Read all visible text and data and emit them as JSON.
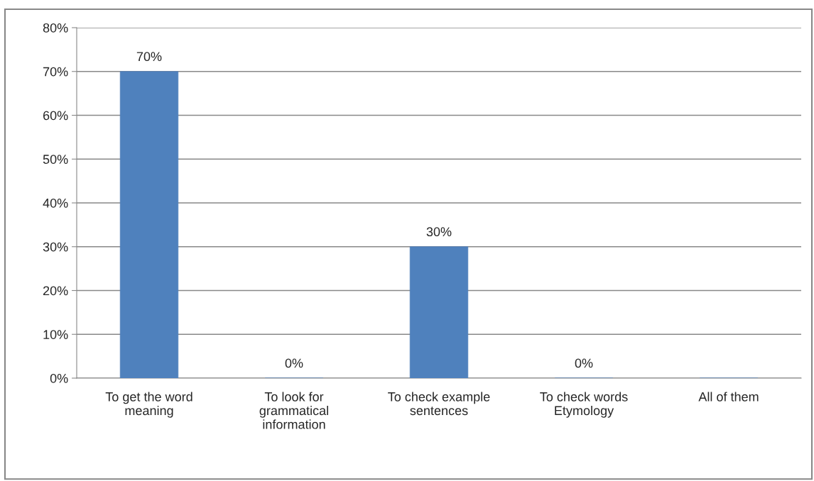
{
  "chart_data": {
    "type": "bar",
    "categories": [
      "To get the word\nmeaning",
      "To look for\ngrammatical\ninformation",
      "To check example\nsentences",
      "To check words\nEtymology",
      "All of them"
    ],
    "values": [
      70,
      0,
      30,
      0,
      0
    ],
    "value_labels": [
      "70%",
      "0%",
      "30%",
      "0%",
      null
    ],
    "color": "#4f81bd",
    "ylim": [
      0,
      80
    ],
    "yticks": [
      {
        "value": 0,
        "label": "0%"
      },
      {
        "value": 10,
        "label": "10%"
      },
      {
        "value": 20,
        "label": "20%"
      },
      {
        "value": 30,
        "label": "30%"
      },
      {
        "value": 40,
        "label": "40%"
      },
      {
        "value": 50,
        "label": "50%"
      },
      {
        "value": 60,
        "label": "60%"
      },
      {
        "value": 70,
        "label": "70%"
      },
      {
        "value": 80,
        "label": "80%"
      }
    ],
    "grid": "y",
    "legend": false
  }
}
